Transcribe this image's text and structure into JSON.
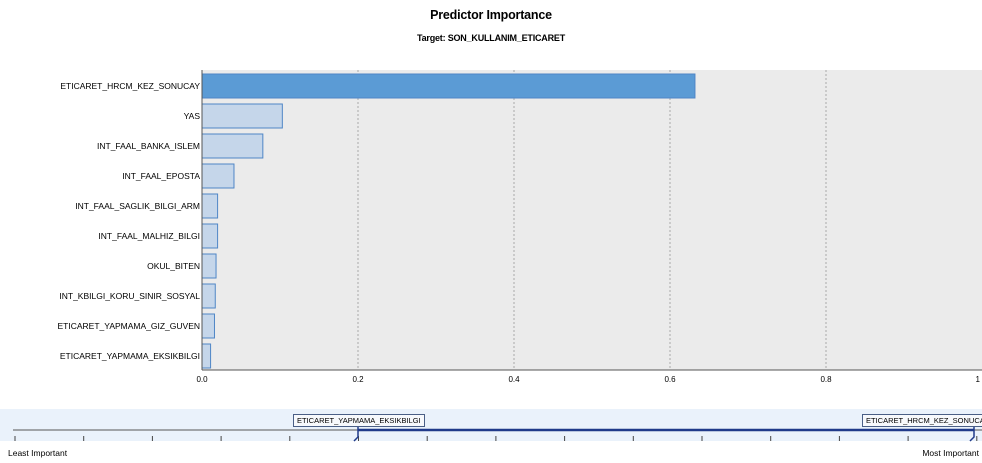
{
  "chart_data": {
    "type": "bar",
    "orientation": "horizontal",
    "title": "Predictor Importance",
    "subtitle": "Target: SON_KULLANIM_ETICARET",
    "categories": [
      "ETICARET_HRCM_KEZ_SONUCAY",
      "YAS",
      "INT_FAAL_BANKA_ISLEM",
      "INT_FAAL_EPOSTA",
      "INT_FAAL_SAGLIK_BILGI_ARM",
      "INT_FAAL_MALHIZ_BILGI",
      "OKUL_BITEN",
      "INT_KBILGI_KORU_SINIR_SOSYAL",
      "ETICARET_YAPMAMA_GIZ_GUVEN",
      "ETICARET_YAPMAMA_EKSIKBILGI"
    ],
    "values": [
      0.632,
      0.103,
      0.078,
      0.041,
      0.02,
      0.02,
      0.018,
      0.017,
      0.016,
      0.011
    ],
    "xlim": [
      0,
      1
    ],
    "xticks": [
      "0.0",
      "0.2",
      "0.4",
      "0.6",
      "0.8",
      "1"
    ],
    "grid": "vertical dashed",
    "highlight_color": "#5b9bd5",
    "bar_color": "#c5d6ea",
    "bar_edge": "#4f86c6",
    "plot_bg": "#ebebeb"
  },
  "slider": {
    "left_tag": "ETICARET_YAPMAMA_EKSIKBILGI",
    "right_tag": "ETICARET_HRCM_KEZ_SONUCAY",
    "least_label": "Least Important",
    "most_label": "Most Important"
  }
}
